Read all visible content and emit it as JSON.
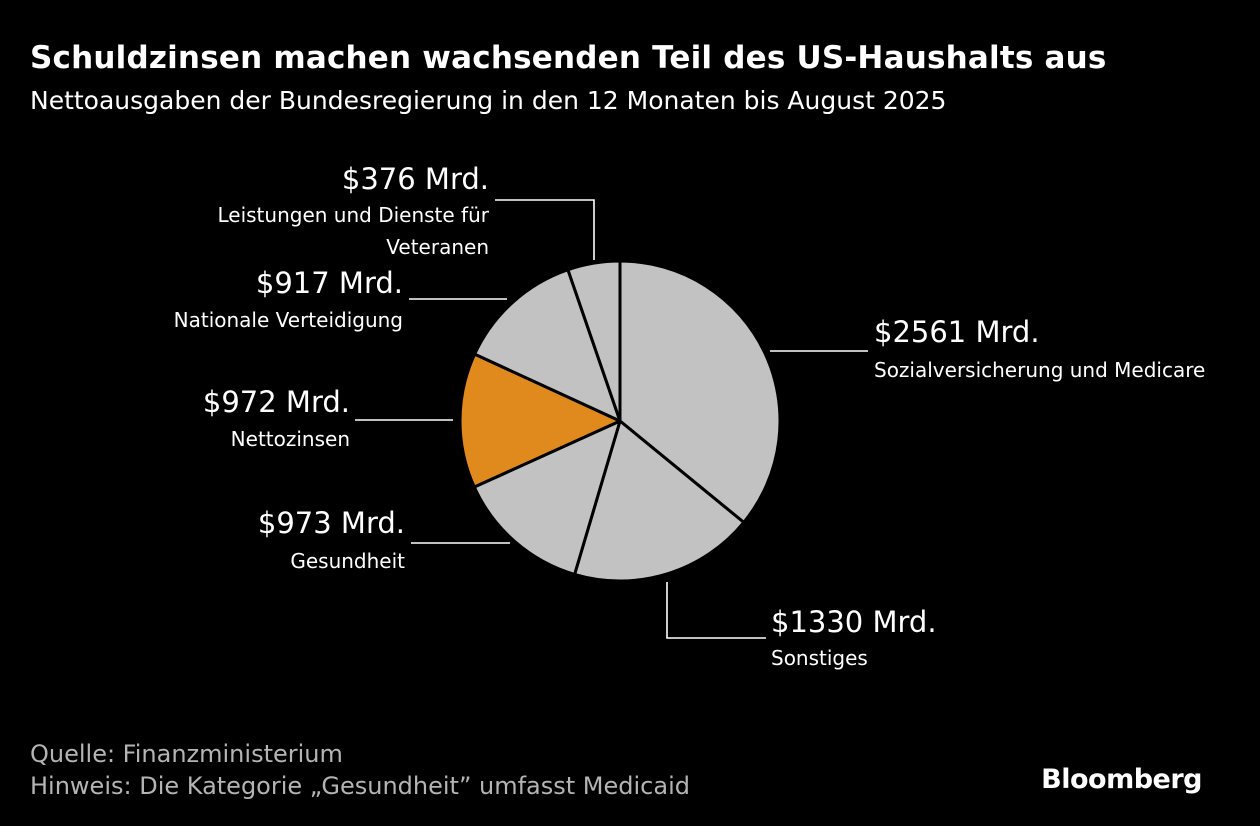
{
  "header": {
    "title": "Schuldzinsen machen wachsenden Teil des US-Haushalts aus",
    "subtitle": "Nettoausgaben der Bundesregierung in den 12 Monaten bis August 2025"
  },
  "chart_data": {
    "type": "pie",
    "title": "Schuldzinsen machen wachsenden Teil des US-Haushalts aus",
    "subtitle": "Nettoausgaben der Bundesregierung in den 12 Monaten bis August 2025",
    "unit": "Mrd. USD",
    "slices": [
      {
        "name": "Sozialversicherung und Medicare",
        "value": 2561,
        "label": "$2561 Mrd.",
        "color": "#c2c2c2"
      },
      {
        "name": "Sonstiges",
        "value": 1330,
        "label": "$1330 Mrd.",
        "color": "#c2c2c2"
      },
      {
        "name": "Gesundheit",
        "value": 973,
        "label": "$973 Mrd.",
        "color": "#c2c2c2"
      },
      {
        "name": "Nettozinsen",
        "value": 972,
        "label": "$972 Mrd.",
        "color": "#e08a1e",
        "highlighted": true
      },
      {
        "name": "Nationale Verteidigung",
        "value": 917,
        "label": "$917 Mrd.",
        "color": "#c2c2c2"
      },
      {
        "name": "Leistungen und Dienste für Veteranen",
        "name_lines": [
          "Leistungen und Dienste für",
          "Veteranen"
        ],
        "value": 376,
        "label": "$376 Mrd.",
        "color": "#c2c2c2"
      }
    ]
  },
  "footer": {
    "source": "Quelle: Finanzministerium",
    "note": "Hinweis: Die Kategorie „Gesundheit” umfasst Medicaid",
    "brand": "Bloomberg"
  },
  "colors": {
    "background": "#000000",
    "slice_default": "#c2c2c2",
    "highlight": "#e08a1e",
    "text": "#ffffff",
    "footer_text": "#b4b4b4"
  }
}
